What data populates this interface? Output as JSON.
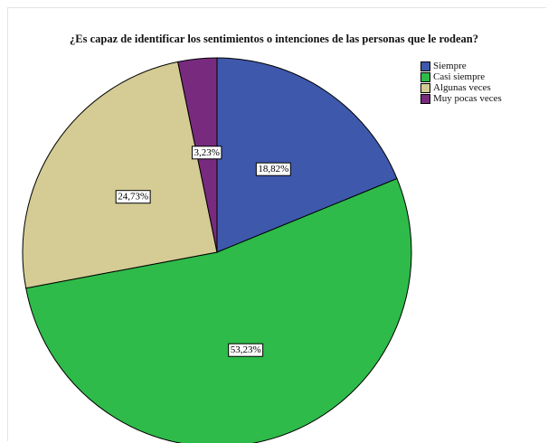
{
  "chart_data": {
    "type": "pie",
    "title": "¿Es capaz de identificar los sentimientos o intenciones de las personas que le rodean?",
    "slices": [
      {
        "label": "Siempre",
        "value": 18.82,
        "display": "18,82%",
        "color": "#3e58ac"
      },
      {
        "label": "Casi siempre",
        "value": 53.23,
        "display": "53,23%",
        "color": "#2ebb4a"
      },
      {
        "label": "Algunas veces",
        "value": 24.73,
        "display": "24,73%",
        "color": "#d4cc94"
      },
      {
        "label": "Muy pocas veces",
        "value": 3.23,
        "display": "3,23%",
        "color": "#782b7e"
      }
    ],
    "start_angle_deg": 0,
    "direction": "clockwise",
    "legend_position": "top-right"
  }
}
